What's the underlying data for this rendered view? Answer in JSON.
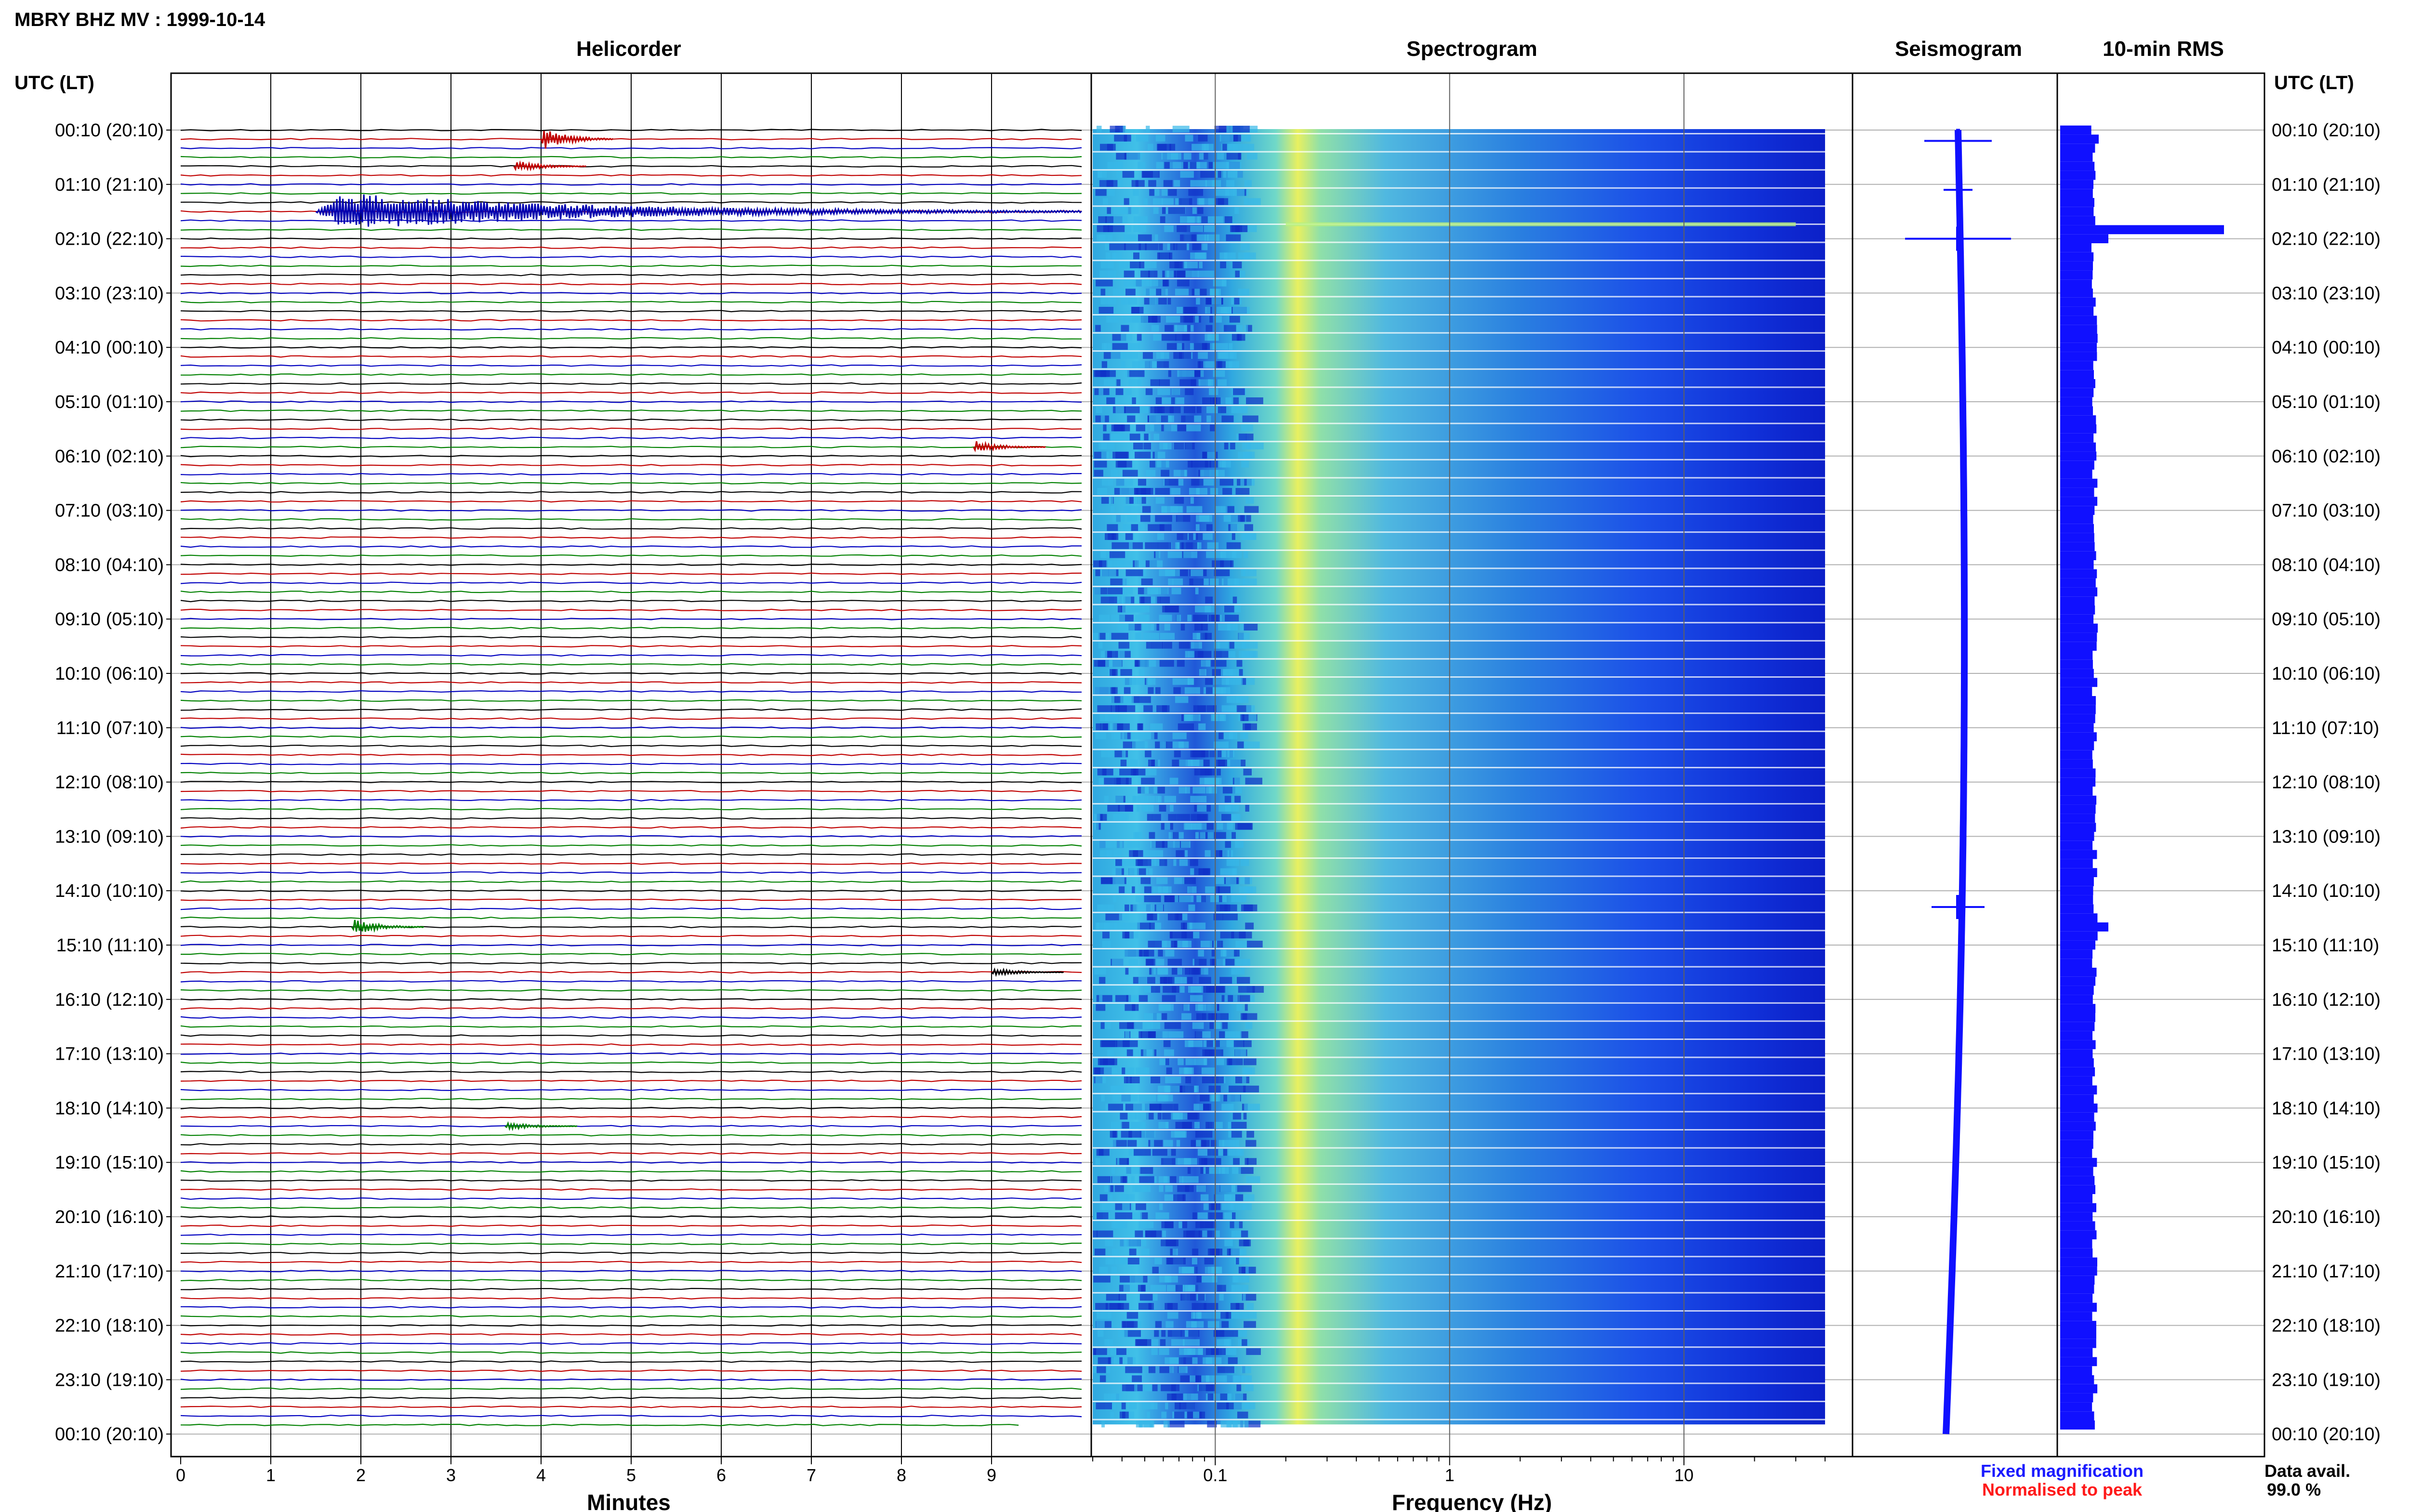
{
  "header": {
    "title": "MBRY BHZ MV : 1999-10-14"
  },
  "panels": {
    "helicorder": "Helicorder",
    "spectrogram": "Spectrogram",
    "seismogram": "Seismogram",
    "rms": "10-min RMS"
  },
  "axis_labels": {
    "left_top": "UTC (LT)",
    "right_top": "UTC (LT)",
    "helicorder_x": "Minutes",
    "spectrogram_x": "Frequency (Hz)"
  },
  "time_ticks": [
    "00:10 (20:10)",
    "01:10 (21:10)",
    "02:10 (22:10)",
    "03:10 (23:10)",
    "04:10 (00:10)",
    "05:10 (01:10)",
    "06:10 (02:10)",
    "07:10 (03:10)",
    "08:10 (04:10)",
    "09:10 (05:10)",
    "10:10 (06:10)",
    "11:10 (07:10)",
    "12:10 (08:10)",
    "13:10 (09:10)",
    "14:10 (10:10)",
    "15:10 (11:10)",
    "16:10 (12:10)",
    "17:10 (13:10)",
    "18:10 (14:10)",
    "19:10 (15:10)",
    "20:10 (16:10)",
    "21:10 (17:10)",
    "22:10 (18:10)",
    "23:10 (19:10)",
    "00:10 (20:10)"
  ],
  "legend": {
    "fixed": "Fixed magnification",
    "normalised": "Normalised to peak",
    "fixed_color": "#1a1aff",
    "normalised_color": "#ff1a1a"
  },
  "data_avail": {
    "label": "Data avail.",
    "value": "99.0 %"
  },
  "colors": {
    "trace_cycle": [
      "#000000",
      "#c00000",
      "#0000c0",
      "#008000"
    ],
    "seismogram": "#1010ff",
    "rms": "#1010ff",
    "grid": "#b0b0b0"
  },
  "chart_data": [
    {
      "type": "line",
      "title": "Helicorder",
      "xlabel": "Minutes",
      "x_ticks": [
        0,
        1,
        2,
        3,
        4,
        5,
        6,
        7,
        8,
        9
      ],
      "xlim": [
        0,
        10
      ],
      "rows": 144,
      "row_minutes": 10,
      "events": [
        {
          "row": 1,
          "minute": 4.0,
          "amplitude": 0.6,
          "color": "red"
        },
        {
          "row": 4,
          "minute": 3.7,
          "amplitude": 0.3,
          "color": "red"
        },
        {
          "row": 9,
          "minute": 1.5,
          "amplitude": 1.0,
          "duration_min": 8.5,
          "color": "blue"
        },
        {
          "row": 35,
          "minute": 8.8,
          "amplitude": 0.3,
          "color": "red"
        },
        {
          "row": 88,
          "minute": 1.9,
          "amplitude": 0.4,
          "color": "green"
        },
        {
          "row": 93,
          "minute": 9.0,
          "amplitude": 0.2,
          "color": "black"
        },
        {
          "row": 110,
          "minute": 3.6,
          "amplitude": 0.2,
          "color": "green"
        }
      ]
    },
    {
      "type": "heatmap",
      "title": "Spectrogram",
      "xlabel": "Frequency (Hz)",
      "x_scale": "log",
      "x_tick_labels": [
        "0.1",
        "1",
        "10"
      ],
      "x_tick_values": [
        0.1,
        1,
        10
      ],
      "xlim": [
        0.03,
        40
      ],
      "dominant_band_hz": [
        0.2,
        0.3
      ]
    },
    {
      "type": "line",
      "title": "Seismogram",
      "note": "24-hour compressed seismogram",
      "spikes_at_time": [
        "00:10",
        "01:50",
        "02:10",
        "14:50"
      ]
    },
    {
      "type": "bar",
      "title": "10-min RMS",
      "orientation": "horizontal",
      "peaks_at_time": [
        "02:10",
        "14:50"
      ]
    }
  ]
}
